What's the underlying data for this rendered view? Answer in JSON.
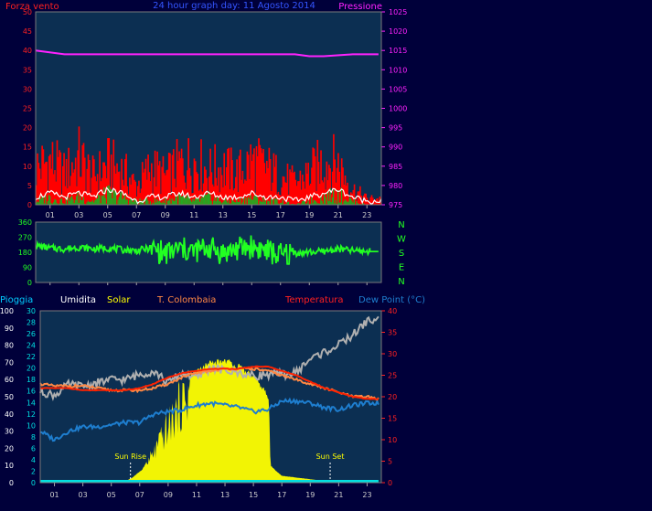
{
  "chart_data": [
    {
      "type": "bar",
      "title": "24 hour graph day:  11 Agosto 2014",
      "left_label": "Forza vento",
      "right_label": "Pressione",
      "x_ticks": [
        "01",
        "03",
        "05",
        "07",
        "09",
        "11",
        "13",
        "15",
        "17",
        "19",
        "21",
        "23"
      ],
      "y_left_ticks": [
        "0",
        "5",
        "10",
        "15",
        "20",
        "25",
        "30",
        "35",
        "40",
        "45",
        "50"
      ],
      "y_right_ticks": [
        "975",
        "980",
        "985",
        "990",
        "995",
        "1000",
        "1005",
        "1010",
        "1015",
        "1020",
        "1025"
      ],
      "ylim_left": [
        0,
        50
      ],
      "ylim_right": [
        975,
        1025
      ],
      "colors": {
        "gust": "#ff0000",
        "wind": "#ffffff",
        "avg": "#22aa22",
        "pressure": "#ff22ff"
      },
      "series": [
        {
          "role": "gust",
          "x": [
            0,
            1,
            2,
            3,
            4,
            5,
            6,
            7,
            8,
            9,
            10,
            11,
            12,
            13,
            14,
            15,
            16,
            17,
            18,
            19,
            20,
            21,
            22,
            23
          ],
          "values": [
            12,
            14,
            10,
            15,
            9,
            13,
            11,
            6,
            12,
            9,
            13,
            14,
            11,
            12,
            10,
            14,
            12,
            9,
            7,
            10,
            14,
            13,
            5,
            2
          ]
        },
        {
          "role": "wind",
          "x": [
            0,
            1,
            2,
            3,
            4,
            5,
            6,
            7,
            8,
            9,
            10,
            11,
            12,
            13,
            14,
            15,
            16,
            17,
            18,
            19,
            20,
            21,
            22,
            23
          ],
          "values": [
            2,
            3,
            2,
            3,
            2,
            4,
            3,
            1,
            2,
            2,
            3,
            2,
            3,
            2,
            2,
            3,
            2,
            2,
            1,
            2,
            3,
            4,
            2,
            1
          ]
        },
        {
          "role": "avg",
          "x": [
            0,
            1,
            2,
            3,
            4,
            5,
            6,
            7,
            8,
            9,
            10,
            11,
            12,
            13,
            14,
            15,
            16,
            17,
            18,
            19,
            20,
            21,
            22,
            23
          ],
          "values": [
            1,
            2,
            1,
            2,
            1,
            3,
            2,
            1,
            1,
            1,
            2,
            1,
            2,
            1,
            1,
            2,
            1,
            1,
            0,
            1,
            2,
            3,
            1,
            0
          ]
        },
        {
          "role": "pressure",
          "axis": "right",
          "x": [
            0,
            2,
            4,
            6,
            8,
            10,
            12,
            14,
            16,
            18,
            19,
            20,
            22,
            23.8
          ],
          "values": [
            1015,
            1014,
            1014,
            1014,
            1014,
            1014,
            1014,
            1014,
            1014,
            1014,
            1013.5,
            1013.5,
            1014,
            1014
          ]
        }
      ]
    },
    {
      "type": "line",
      "x_ticks": [
        "01",
        "03",
        "05",
        "07",
        "09",
        "11",
        "13",
        "15",
        "17",
        "19",
        "21",
        "23"
      ],
      "y_ticks": [
        "0",
        "90",
        "180",
        "270",
        "360"
      ],
      "ylim": [
        0,
        360
      ],
      "compass": [
        "N",
        "W",
        "S",
        "E",
        "N"
      ],
      "color": "#22ff22",
      "series": [
        {
          "role": "direction",
          "x": [
            0,
            1,
            2,
            3,
            4,
            5,
            6,
            7,
            8,
            9,
            10,
            11,
            12,
            13,
            14,
            15,
            16,
            17,
            18,
            19,
            20,
            21,
            22,
            23,
            23.8
          ],
          "values": [
            220,
            205,
            200,
            210,
            200,
            205,
            195,
            190,
            205,
            170,
            200,
            185,
            210,
            175,
            200,
            215,
            190,
            160,
            175,
            180,
            185,
            200,
            190,
            185,
            185
          ]
        }
      ]
    },
    {
      "type": "line",
      "legend": [
        "Pioggia",
        "Umidita",
        "Solar",
        "T. Colombaia",
        "Temperatura",
        "Dew Point (°C)"
      ],
      "x_ticks": [
        "01",
        "03",
        "05",
        "07",
        "09",
        "11",
        "13",
        "15",
        "17",
        "19",
        "21",
        "23"
      ],
      "y_left_pct_ticks": [
        "0",
        "10",
        "20",
        "30",
        "40",
        "50",
        "60",
        "70",
        "80",
        "90",
        "100"
      ],
      "y_left_rain_ticks": [
        "0",
        "2",
        "4",
        "6",
        "8",
        "10",
        "12",
        "14",
        "16",
        "18",
        "20",
        "22",
        "24",
        "26",
        "28",
        "30"
      ],
      "y_right_ticks": [
        "0",
        "5",
        "10",
        "15",
        "20",
        "25",
        "30",
        "35",
        "40"
      ],
      "ylim_pct": [
        0,
        100
      ],
      "ylim_temp": [
        0,
        40
      ],
      "annotations": [
        "Sun Rise",
        "Sun Set"
      ],
      "sunrise": 6.35,
      "sunset": 20.4,
      "colors": {
        "solar": "#ffff00",
        "humidity": "#b0b0b0",
        "t_colombaia": "#ff8844",
        "temperature": "#ff2200",
        "dew": "#1e7ecf",
        "rain": "#00e0e0"
      },
      "series": [
        {
          "role": "humidity",
          "x": [
            0,
            1,
            2,
            3,
            4,
            5,
            6,
            7,
            8,
            9,
            10,
            11,
            12,
            13,
            14,
            15,
            16,
            17,
            18,
            19,
            20,
            21,
            22,
            23,
            23.8
          ],
          "values": [
            53,
            51,
            57,
            56,
            58,
            60,
            60,
            63,
            65,
            58,
            64,
            61,
            67,
            65,
            64,
            62,
            63,
            63,
            64,
            72,
            76,
            80,
            86,
            94,
            95
          ]
        },
        {
          "role": "t_colombaia",
          "x": [
            0,
            1,
            2,
            3,
            4,
            5,
            6,
            7,
            8,
            9,
            10,
            11,
            12,
            13,
            14,
            15,
            16,
            17,
            18,
            19,
            20,
            21,
            22,
            23,
            23.8
          ],
          "values": [
            23,
            22.5,
            22.5,
            22.5,
            22,
            21.5,
            21.5,
            21.5,
            22,
            23,
            24.5,
            25.5,
            26,
            26.5,
            26.5,
            26.5,
            26,
            25,
            24,
            23,
            22,
            21,
            20,
            20,
            19.5
          ]
        },
        {
          "role": "temperature",
          "x": [
            0,
            1,
            2,
            3,
            4,
            5,
            6,
            7,
            8,
            9,
            10,
            11,
            12,
            13,
            14,
            15,
            16,
            17,
            18,
            19,
            20,
            21,
            22,
            23,
            23.8
          ],
          "values": [
            22,
            22,
            22,
            21.5,
            21.5,
            21.5,
            21.5,
            22,
            23,
            24.5,
            25.5,
            26,
            26.5,
            26.5,
            26.5,
            27,
            27,
            26,
            25,
            23.5,
            22,
            21,
            20,
            19.5,
            19.5
          ]
        },
        {
          "role": "dew",
          "x": [
            0,
            1,
            2,
            3,
            4,
            5,
            6,
            7,
            8,
            9,
            10,
            11,
            12,
            13,
            14,
            15,
            16,
            17,
            18,
            19,
            20,
            21,
            22,
            23,
            23.8
          ],
          "values": [
            12,
            10,
            12,
            13,
            13,
            13.5,
            14,
            14,
            16,
            16.5,
            17,
            18,
            18.5,
            18,
            17.5,
            16.5,
            17,
            19,
            19,
            18.5,
            17.5,
            17,
            18,
            18.5,
            18.5
          ]
        },
        {
          "role": "solar",
          "x": [
            5.8,
            6.5,
            7.2,
            8,
            9,
            10,
            11,
            12,
            13,
            13.5,
            14,
            15,
            15.8,
            16.1,
            16.2,
            17,
            18,
            19,
            20,
            20.8
          ],
          "values": [
            0,
            3,
            8,
            20,
            38,
            55,
            66,
            70,
            72,
            70,
            68,
            62,
            54,
            48,
            10,
            4,
            3,
            2,
            1,
            0
          ]
        },
        {
          "role": "rain",
          "x": [
            0,
            23.8
          ],
          "values": [
            0,
            0
          ]
        }
      ]
    }
  ]
}
